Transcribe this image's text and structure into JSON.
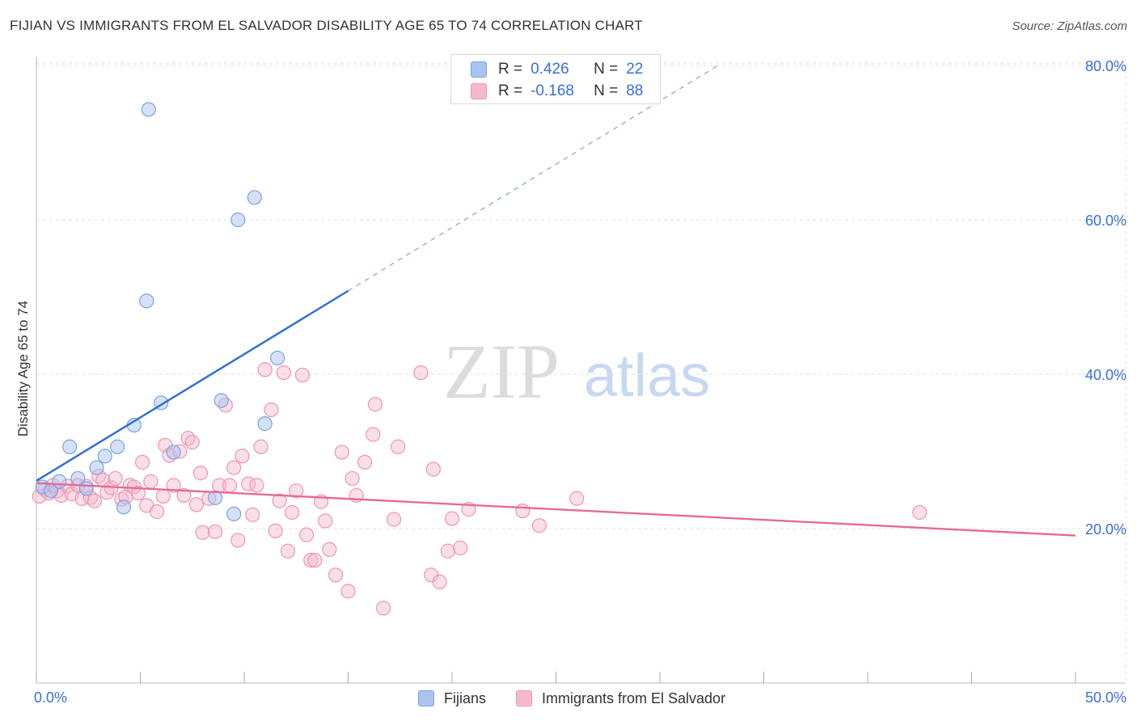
{
  "header": {
    "title": "FIJIAN VS IMMIGRANTS FROM EL SALVADOR DISABILITY AGE 65 TO 74 CORRELATION CHART",
    "source": "Source: ZipAtlas.com"
  },
  "watermark": {
    "zip": "ZIP",
    "atlas": "atlas"
  },
  "colors": {
    "blue_fill": "#a9c4ef",
    "blue_stroke": "#7ba3e0",
    "blue_line": "#2e6fcc",
    "pink_fill": "#f5b9cd",
    "pink_stroke": "#ee94b3",
    "pink_line": "#e56a97",
    "tick_label": "#3a6fd8",
    "grid": "#e2e2e2"
  },
  "correlation_box": {
    "rows": [
      {
        "r_label": "R =",
        "r_value": "0.426",
        "n_label": "N =",
        "n_value": "22",
        "color": "blue"
      },
      {
        "r_label": "R =",
        "r_value": "-0.168",
        "n_label": "N =",
        "n_value": "88",
        "color": "pink"
      }
    ]
  },
  "legend": {
    "items": [
      {
        "label": "Fijians",
        "color": "blue"
      },
      {
        "label": "Immigrants from El Salvador",
        "color": "pink"
      }
    ]
  },
  "chart_data": {
    "type": "scatter",
    "title": "FIJIAN VS IMMIGRANTS FROM EL SALVADOR DISABILITY AGE 65 TO 74 CORRELATION CHART",
    "xlabel": "",
    "ylabel": "Disability Age 65 to 74",
    "xlim": [
      0,
      50
    ],
    "ylim": [
      0,
      85
    ],
    "x_tick_labels": [
      "0.0%",
      "50.0%"
    ],
    "y_ticks": [
      20,
      40,
      60,
      80
    ],
    "y_tick_labels": [
      "20.0%",
      "40.0%",
      "60.0%",
      "80.0%"
    ],
    "grid": true,
    "legend_position": "bottom",
    "series": [
      {
        "name": "Fijians",
        "color": "blue",
        "points": [
          [
            0.3,
            25.4
          ],
          [
            0.7,
            24.9
          ],
          [
            1.1,
            26.1
          ],
          [
            1.6,
            30.6
          ],
          [
            2.0,
            26.5
          ],
          [
            2.4,
            25.2
          ],
          [
            2.9,
            27.9
          ],
          [
            3.3,
            29.4
          ],
          [
            3.9,
            30.6
          ],
          [
            4.2,
            22.8
          ],
          [
            4.7,
            33.4
          ],
          [
            5.3,
            49.5
          ],
          [
            5.4,
            74.3
          ],
          [
            6.0,
            36.3
          ],
          [
            6.6,
            29.9
          ],
          [
            8.6,
            24.0
          ],
          [
            8.9,
            36.6
          ],
          [
            9.5,
            21.9
          ],
          [
            9.7,
            60.0
          ],
          [
            10.5,
            62.9
          ],
          [
            11.0,
            33.6
          ],
          [
            11.6,
            42.1
          ]
        ],
        "trend": {
          "x": [
            0.0,
            15.0
          ],
          "y": [
            26.2,
            50.8
          ],
          "extended_x": [
            15.0,
            32.8
          ],
          "extended_y": [
            50.8,
            80.0
          ]
        }
      },
      {
        "name": "Immigrants from El Salvador",
        "color": "pink",
        "points": [
          [
            0.15,
            24.2
          ],
          [
            0.4,
            25.1
          ],
          [
            0.6,
            24.6
          ],
          [
            0.8,
            25.6
          ],
          [
            1.0,
            24.9
          ],
          [
            1.2,
            24.3
          ],
          [
            1.5,
            25.5
          ],
          [
            1.7,
            24.5
          ],
          [
            2.0,
            25.6
          ],
          [
            2.2,
            23.9
          ],
          [
            2.4,
            25.5
          ],
          [
            2.6,
            24.0
          ],
          [
            2.8,
            23.6
          ],
          [
            3.0,
            26.8
          ],
          [
            3.2,
            26.3
          ],
          [
            3.4,
            24.7
          ],
          [
            3.6,
            25.3
          ],
          [
            3.8,
            26.5
          ],
          [
            4.1,
            23.8
          ],
          [
            4.3,
            24.1
          ],
          [
            4.5,
            25.6
          ],
          [
            4.7,
            25.4
          ],
          [
            4.9,
            24.6
          ],
          [
            5.1,
            28.6
          ],
          [
            5.3,
            23.0
          ],
          [
            5.5,
            26.1
          ],
          [
            5.8,
            22.2
          ],
          [
            6.1,
            24.2
          ],
          [
            6.2,
            30.8
          ],
          [
            6.4,
            29.5
          ],
          [
            6.6,
            25.6
          ],
          [
            6.9,
            30.0
          ],
          [
            7.1,
            24.3
          ],
          [
            7.3,
            31.7
          ],
          [
            7.5,
            31.2
          ],
          [
            7.7,
            23.1
          ],
          [
            7.9,
            27.2
          ],
          [
            8.0,
            19.5
          ],
          [
            8.3,
            23.9
          ],
          [
            8.6,
            19.6
          ],
          [
            8.8,
            25.6
          ],
          [
            9.1,
            36.0
          ],
          [
            9.3,
            25.6
          ],
          [
            9.5,
            27.9
          ],
          [
            9.7,
            18.5
          ],
          [
            9.9,
            29.4
          ],
          [
            10.2,
            25.8
          ],
          [
            10.4,
            21.8
          ],
          [
            10.6,
            25.6
          ],
          [
            10.8,
            30.6
          ],
          [
            11.0,
            40.6
          ],
          [
            11.3,
            35.4
          ],
          [
            11.5,
            19.7
          ],
          [
            11.7,
            23.6
          ],
          [
            11.9,
            40.2
          ],
          [
            12.1,
            17.1
          ],
          [
            12.3,
            22.1
          ],
          [
            12.5,
            24.9
          ],
          [
            12.8,
            39.9
          ],
          [
            13.0,
            19.2
          ],
          [
            13.2,
            15.9
          ],
          [
            13.4,
            15.9
          ],
          [
            13.7,
            23.5
          ],
          [
            13.9,
            21.0
          ],
          [
            14.1,
            17.3
          ],
          [
            14.4,
            14.0
          ],
          [
            14.7,
            29.9
          ],
          [
            15.0,
            11.9
          ],
          [
            15.2,
            26.5
          ],
          [
            15.4,
            24.3
          ],
          [
            15.8,
            28.6
          ],
          [
            16.2,
            32.2
          ],
          [
            16.3,
            36.1
          ],
          [
            16.7,
            9.7
          ],
          [
            17.2,
            21.2
          ],
          [
            17.4,
            30.6
          ],
          [
            18.5,
            40.2
          ],
          [
            19.0,
            14.0
          ],
          [
            19.1,
            27.7
          ],
          [
            19.4,
            13.1
          ],
          [
            19.8,
            17.1
          ],
          [
            20.0,
            21.3
          ],
          [
            20.4,
            17.5
          ],
          [
            20.8,
            22.5
          ],
          [
            23.4,
            22.3
          ],
          [
            24.2,
            20.4
          ],
          [
            26.0,
            23.9
          ],
          [
            42.5,
            22.1
          ]
        ],
        "trend": {
          "x": [
            0.0,
            50.0
          ],
          "y": [
            25.9,
            19.1
          ]
        }
      }
    ]
  }
}
